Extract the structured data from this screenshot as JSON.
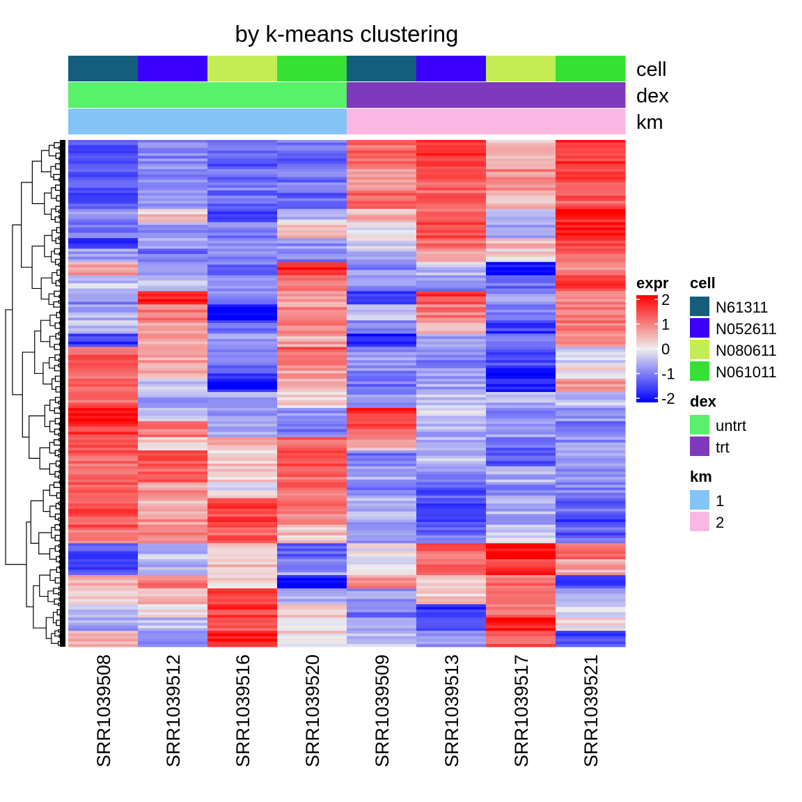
{
  "chart_data": {
    "type": "heatmap",
    "title": "by k-means clustering",
    "columns": [
      "SRR1039508",
      "SRR1039512",
      "SRR1039516",
      "SRR1039520",
      "SRR1039509",
      "SRR1039513",
      "SRR1039517",
      "SRR1039521"
    ],
    "annotations": [
      {
        "name": "cell",
        "values": [
          "N61311",
          "N052611",
          "N080611",
          "N061011",
          "N61311",
          "N052611",
          "N080611",
          "N061011"
        ],
        "levels": [
          "N61311",
          "N052611",
          "N080611",
          "N061011"
        ],
        "colors": {
          "N61311": "#155e7b",
          "N052611": "#3a00fa",
          "N080611": "#c4ed55",
          "N061011": "#37e035"
        }
      },
      {
        "name": "dex",
        "values": [
          "untrt",
          "untrt",
          "untrt",
          "untrt",
          "trt",
          "trt",
          "trt",
          "trt"
        ],
        "levels": [
          "untrt",
          "trt"
        ],
        "colors": {
          "untrt": "#59f169",
          "trt": "#7e39bc"
        }
      },
      {
        "name": "km",
        "values": [
          "1",
          "1",
          "1",
          "1",
          "2",
          "2",
          "2",
          "2"
        ],
        "levels": [
          "1",
          "2"
        ],
        "colors": {
          "1": "#84c4f6",
          "2": "#f9b8e3"
        }
      }
    ],
    "color_scale": {
      "name": "expr",
      "breaks": [
        2,
        1,
        0,
        -1,
        -2
      ],
      "range": [
        -2,
        2
      ],
      "colors": {
        "low": "#0000ff",
        "mid": "#eeeeee",
        "high": "#ff0000"
      }
    },
    "row_blocks": [
      {
        "rows": 10,
        "values": [
          -1.3,
          -0.9,
          -1.2,
          -1.1,
          1.1,
          1.6,
          0.4,
          1.6
        ]
      },
      {
        "rows": 9,
        "values": [
          -1.2,
          -0.9,
          -1.0,
          -1.0,
          0.7,
          1.2,
          0.8,
          1.3
        ]
      },
      {
        "rows": 7,
        "values": [
          -1.3,
          -0.6,
          -1.1,
          -1.2,
          1.2,
          1.2,
          0.4,
          1.2
        ]
      },
      {
        "rows": 5,
        "values": [
          -0.9,
          0.3,
          -1.6,
          -0.4,
          0.5,
          1.0,
          -0.3,
          1.7
        ]
      },
      {
        "rows": 6,
        "values": [
          -1.0,
          -0.7,
          -0.9,
          0.3,
          0.0,
          1.4,
          -0.6,
          1.9
        ]
      },
      {
        "rows": 4,
        "values": [
          -1.8,
          -0.7,
          -0.8,
          -0.7,
          -0.2,
          1.0,
          0.5,
          1.5
        ]
      },
      {
        "rows": 5,
        "values": [
          -0.6,
          -1.1,
          -1.0,
          -0.9,
          -0.6,
          0.8,
          0.2,
          1.3
        ]
      },
      {
        "rows": 5,
        "values": [
          0.7,
          -0.6,
          -1.0,
          1.8,
          -0.8,
          -0.4,
          -1.9,
          0.7
        ]
      },
      {
        "rows": 6,
        "values": [
          -0.4,
          -0.2,
          -0.7,
          0.9,
          -0.8,
          -0.8,
          -1.1,
          1.4
        ]
      },
      {
        "rows": 5,
        "values": [
          -0.8,
          1.8,
          -1.0,
          0.7,
          -1.5,
          1.5,
          -0.8,
          0.9
        ]
      },
      {
        "rows": 6,
        "values": [
          -0.5,
          1.0,
          -2.0,
          0.8,
          -0.4,
          1.0,
          -1.0,
          0.9
        ]
      },
      {
        "rows": 5,
        "values": [
          -0.4,
          0.8,
          -1.2,
          0.8,
          -0.9,
          0.5,
          -1.5,
          1.0
        ]
      },
      {
        "rows": 5,
        "values": [
          -1.6,
          0.5,
          -0.8,
          0.6,
          -1.9,
          -0.6,
          -1.0,
          0.7
        ]
      },
      {
        "rows": 7,
        "values": [
          1.2,
          0.6,
          -1.1,
          1.2,
          -0.7,
          -0.9,
          -1.3,
          -0.2
        ]
      },
      {
        "rows": 5,
        "values": [
          1.0,
          0.6,
          -1.4,
          0.7,
          -0.8,
          -0.7,
          -1.9,
          0.1
        ]
      },
      {
        "rows": 5,
        "values": [
          1.3,
          -0.4,
          -1.8,
          0.6,
          -1.0,
          -0.6,
          -1.6,
          0.7
        ]
      },
      {
        "rows": 6,
        "values": [
          1.2,
          -0.6,
          -0.5,
          0.3,
          -0.7,
          -0.4,
          -0.5,
          -0.3
        ]
      },
      {
        "rows": 5,
        "values": [
          2.0,
          -0.4,
          -0.8,
          -0.7,
          1.6,
          -0.2,
          -0.9,
          -0.8
        ]
      },
      {
        "rows": 6,
        "values": [
          1.6,
          1.0,
          -0.5,
          -1.0,
          1.3,
          -0.5,
          -0.7,
          -0.9
        ]
      },
      {
        "rows": 5,
        "values": [
          1.2,
          0.3,
          0.4,
          1.2,
          0.6,
          -0.6,
          -1.2,
          -0.8
        ]
      },
      {
        "rows": 6,
        "values": [
          1.2,
          1.4,
          0.3,
          1.3,
          -1.0,
          -0.4,
          -1.2,
          -0.8
        ]
      },
      {
        "rows": 6,
        "values": [
          1.0,
          1.2,
          0.2,
          1.2,
          -0.6,
          -0.9,
          -0.5,
          -0.8
        ]
      },
      {
        "rows": 6,
        "values": [
          1.3,
          0.7,
          0.0,
          1.1,
          -0.9,
          -1.3,
          -0.8,
          -0.9
        ]
      },
      {
        "rows": 5,
        "values": [
          1.3,
          0.5,
          1.4,
          1.0,
          -0.5,
          -1.4,
          -0.6,
          -1.1
        ]
      },
      {
        "rows": 6,
        "values": [
          1.3,
          0.7,
          1.4,
          0.8,
          -0.6,
          -1.3,
          -0.5,
          -1.4
        ]
      },
      {
        "rows": 6,
        "values": [
          1.0,
          1.0,
          1.2,
          0.4,
          -0.8,
          -1.1,
          -0.2,
          -1.2
        ]
      },
      {
        "rows": 6,
        "values": [
          -1.3,
          -0.4,
          0.5,
          -1.1,
          0.0,
          1.2,
          1.9,
          1.1
        ]
      },
      {
        "rows": 6,
        "values": [
          -1.5,
          -0.5,
          0.4,
          -0.7,
          -0.2,
          1.0,
          1.6,
          0.6
        ]
      },
      {
        "rows": 5,
        "values": [
          0.6,
          0.9,
          0.3,
          -1.9,
          0.8,
          0.4,
          1.0,
          -1.5
        ]
      },
      {
        "rows": 6,
        "values": [
          0.2,
          0.6,
          1.3,
          -0.4,
          -0.7,
          0.3,
          0.9,
          -0.6
        ]
      },
      {
        "rows": 5,
        "values": [
          -0.5,
          0.1,
          1.5,
          0.3,
          -1.0,
          -1.5,
          1.0,
          -0.2
        ]
      },
      {
        "rows": 5,
        "values": [
          -0.7,
          -0.4,
          1.2,
          -0.2,
          -0.6,
          -1.2,
          1.9,
          0.1
        ]
      },
      {
        "rows": 6,
        "values": [
          0.4,
          -0.7,
          1.8,
          0.2,
          -0.4,
          -0.8,
          1.2,
          -1.4
        ]
      }
    ]
  }
}
